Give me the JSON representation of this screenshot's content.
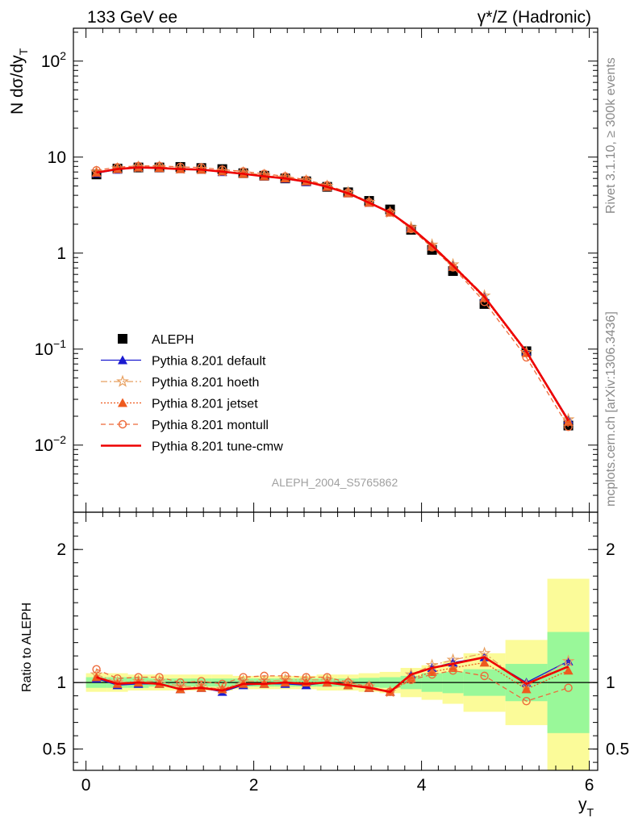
{
  "header": {
    "left": "133 GeV ee",
    "right": "γ*/Z (Hadronic)"
  },
  "side": {
    "rivet": "Rivet 3.1.10, ≥ 300k events",
    "mcplots": "mcplots.cern.ch [arXiv:1306.3436]"
  },
  "watermark": "ALEPH_2004_S5765862",
  "axes": {
    "top_ylabel": "N dσ/dy",
    "top_ylabel_sub": "T",
    "bottom_ylabel": "Ratio to ALEPH",
    "xlabel": "y",
    "xlabel_sub": "T"
  },
  "chart_data": [
    {
      "type": "scatter",
      "panel": "main",
      "ylog": true,
      "xlim": [
        -0.15,
        6.1
      ],
      "ylim": [
        0.002,
        220
      ],
      "yticks": [
        {
          "value": 0.01,
          "base": "10",
          "exp": "−2"
        },
        {
          "value": 0.1,
          "base": "10",
          "exp": "−1"
        },
        {
          "value": 1,
          "label": "1"
        },
        {
          "value": 10,
          "label": "10"
        },
        {
          "value": 100,
          "base": "10",
          "exp": "2"
        }
      ],
      "x": [
        0.125,
        0.375,
        0.625,
        0.875,
        1.125,
        1.375,
        1.625,
        1.875,
        2.125,
        2.375,
        2.625,
        2.875,
        3.125,
        3.375,
        3.625,
        3.875,
        4.125,
        4.375,
        4.75,
        5.25,
        5.75
      ],
      "series": [
        {
          "name": "ALEPH",
          "color": "#000000",
          "marker": "square",
          "line": "none",
          "values": [
            6.6,
            7.6,
            7.8,
            7.8,
            7.9,
            7.7,
            7.5,
            6.8,
            6.4,
            6.0,
            5.6,
            4.9,
            4.3,
            3.5,
            2.85,
            1.75,
            1.08,
            0.65,
            0.295,
            0.095,
            0.016
          ]
        },
        {
          "name": "Pythia 8.201 default",
          "color": "#1a1ad0",
          "marker": "triangle",
          "line": "solid",
          "values": [
            6.8,
            7.4,
            7.8,
            7.7,
            7.5,
            7.4,
            7.0,
            6.7,
            6.3,
            5.95,
            5.5,
            4.9,
            4.2,
            3.35,
            2.65,
            1.85,
            1.2,
            0.74,
            0.35,
            0.095,
            0.0185
          ]
        },
        {
          "name": "Pythia 8.201 hoeth",
          "color": "#e8a060",
          "marker": "star",
          "line": "dashdot",
          "values": [
            7.0,
            7.6,
            7.9,
            7.9,
            7.6,
            7.5,
            7.1,
            6.9,
            6.5,
            6.15,
            5.7,
            5.0,
            4.3,
            3.4,
            2.65,
            1.85,
            1.22,
            0.76,
            0.36,
            0.093,
            0.0185
          ]
        },
        {
          "name": "Pythia 8.201 jetset",
          "color": "#ee5a1e",
          "marker": "triangle",
          "line": "dotted",
          "values": [
            6.9,
            7.5,
            7.8,
            7.7,
            7.5,
            7.4,
            7.1,
            6.7,
            6.3,
            6.0,
            5.6,
            4.9,
            4.2,
            3.35,
            2.65,
            1.8,
            1.17,
            0.72,
            0.34,
            0.091,
            0.0175
          ]
        },
        {
          "name": "Pythia 8.201 montull",
          "color": "#ee6a3a",
          "marker": "circle-open",
          "line": "dashed",
          "values": [
            7.3,
            7.85,
            8.1,
            8.1,
            7.9,
            7.8,
            7.4,
            7.1,
            6.7,
            6.3,
            5.8,
            5.1,
            4.3,
            3.4,
            2.65,
            1.78,
            1.15,
            0.71,
            0.31,
            0.082,
            0.0155
          ]
        },
        {
          "name": "Pythia 8.201 tune-cmw",
          "color": "#ee0000",
          "marker": "none",
          "line": "thick",
          "values": [
            6.9,
            7.5,
            7.8,
            7.7,
            7.5,
            7.4,
            7.05,
            6.7,
            6.3,
            6.0,
            5.55,
            4.9,
            4.2,
            3.35,
            2.65,
            1.85,
            1.2,
            0.74,
            0.35,
            0.094,
            0.018
          ]
        }
      ]
    },
    {
      "type": "line",
      "panel": "ratio",
      "xlim": [
        -0.15,
        6.1
      ],
      "ylim": [
        0.34,
        2.28
      ],
      "yticks": [
        {
          "value": 0.5,
          "label": "0.5"
        },
        {
          "value": 1,
          "label": "1"
        },
        {
          "value": 2,
          "label": "2"
        }
      ],
      "xticks": [
        {
          "value": 0,
          "label": "0"
        },
        {
          "value": 2,
          "label": "2"
        },
        {
          "value": 4,
          "label": "4"
        },
        {
          "value": 6,
          "label": "6"
        }
      ],
      "bands": {
        "edges": [
          0,
          0.25,
          0.5,
          0.75,
          1.0,
          1.25,
          1.5,
          1.75,
          2.0,
          2.25,
          2.5,
          2.75,
          3.0,
          3.25,
          3.5,
          3.75,
          4.0,
          4.25,
          4.5,
          5.0,
          5.5,
          6.0
        ],
        "stat": [
          0.04,
          0.04,
          0.04,
          0.03,
          0.03,
          0.03,
          0.03,
          0.03,
          0.03,
          0.03,
          0.03,
          0.03,
          0.03,
          0.035,
          0.04,
          0.05,
          0.07,
          0.08,
          0.1,
          0.14,
          0.38
        ],
        "total": [
          0.07,
          0.07,
          0.06,
          0.06,
          0.06,
          0.06,
          0.06,
          0.05,
          0.05,
          0.05,
          0.05,
          0.06,
          0.06,
          0.07,
          0.08,
          0.11,
          0.13,
          0.16,
          0.22,
          0.32,
          0.78
        ],
        "stat_color": "#99f899",
        "total_color": "#fbfb99"
      },
      "x": [
        0.125,
        0.375,
        0.625,
        0.875,
        1.125,
        1.375,
        1.625,
        1.875,
        2.125,
        2.375,
        2.625,
        2.875,
        3.125,
        3.375,
        3.625,
        3.875,
        4.125,
        4.375,
        4.75,
        5.25,
        5.75
      ],
      "series": [
        {
          "name": "Pythia 8.201 default",
          "color": "#1a1ad0",
          "marker": "triangle",
          "line": "solid",
          "values": [
            1.03,
            0.98,
            0.99,
            0.99,
            0.95,
            0.96,
            0.93,
            0.98,
            0.99,
            0.99,
            0.98,
            1.0,
            0.98,
            0.96,
            0.93,
            1.06,
            1.11,
            1.15,
            1.19,
            1.0,
            1.16
          ]
        },
        {
          "name": "Pythia 8.201 hoeth",
          "color": "#e8a060",
          "marker": "star",
          "line": "dashdot",
          "values": [
            1.06,
            1.0,
            1.01,
            1.01,
            0.97,
            0.97,
            0.95,
            1.01,
            1.01,
            1.02,
            1.02,
            1.02,
            1.0,
            0.97,
            0.93,
            1.06,
            1.13,
            1.17,
            1.22,
            0.98,
            1.16
          ]
        },
        {
          "name": "Pythia 8.201 jetset",
          "color": "#ee5a1e",
          "marker": "triangle",
          "line": "dotted",
          "values": [
            1.04,
            0.99,
            1.0,
            0.99,
            0.95,
            0.96,
            0.95,
            0.99,
            0.99,
            1.0,
            1.0,
            1.0,
            0.98,
            0.96,
            0.93,
            1.03,
            1.08,
            1.11,
            1.15,
            0.95,
            1.09
          ]
        },
        {
          "name": "Pythia 8.201 montull",
          "color": "#ee6a3a",
          "marker": "circle-open",
          "line": "dashed",
          "values": [
            1.1,
            1.03,
            1.04,
            1.04,
            1.0,
            1.01,
            0.99,
            1.04,
            1.05,
            1.05,
            1.04,
            1.04,
            1.0,
            0.97,
            0.93,
            1.02,
            1.06,
            1.09,
            1.05,
            0.86,
            0.96
          ]
        },
        {
          "name": "Pythia 8.201 tune-cmw",
          "color": "#ee0000",
          "marker": "none",
          "line": "thick",
          "values": [
            1.04,
            0.99,
            1.0,
            0.99,
            0.95,
            0.96,
            0.94,
            0.99,
            0.99,
            1.0,
            0.99,
            1.0,
            0.98,
            0.96,
            0.93,
            1.06,
            1.11,
            1.14,
            1.19,
            0.99,
            1.12
          ]
        }
      ]
    }
  ]
}
